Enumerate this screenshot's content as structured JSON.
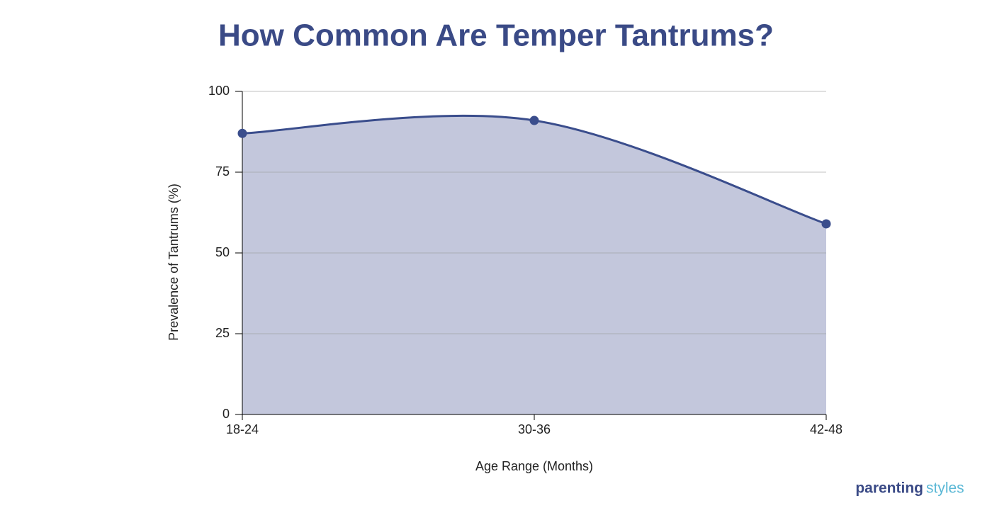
{
  "chart_data": {
    "type": "area",
    "title": "How Common Are Temper Tantrums?",
    "x_label": "Age Range (Months)",
    "y_label": "Prevalence of Tantrums (%)",
    "categories": [
      "18-24",
      "30-36",
      "42-48"
    ],
    "values": [
      87,
      91,
      59
    ],
    "color": "#3a4d8c",
    "fill_color": "#c3c7dc",
    "ylim": [
      0,
      100
    ],
    "yticks": [
      0,
      25,
      50,
      75,
      100
    ],
    "grid": true
  },
  "logo": [
    "parenting",
    "styles"
  ]
}
